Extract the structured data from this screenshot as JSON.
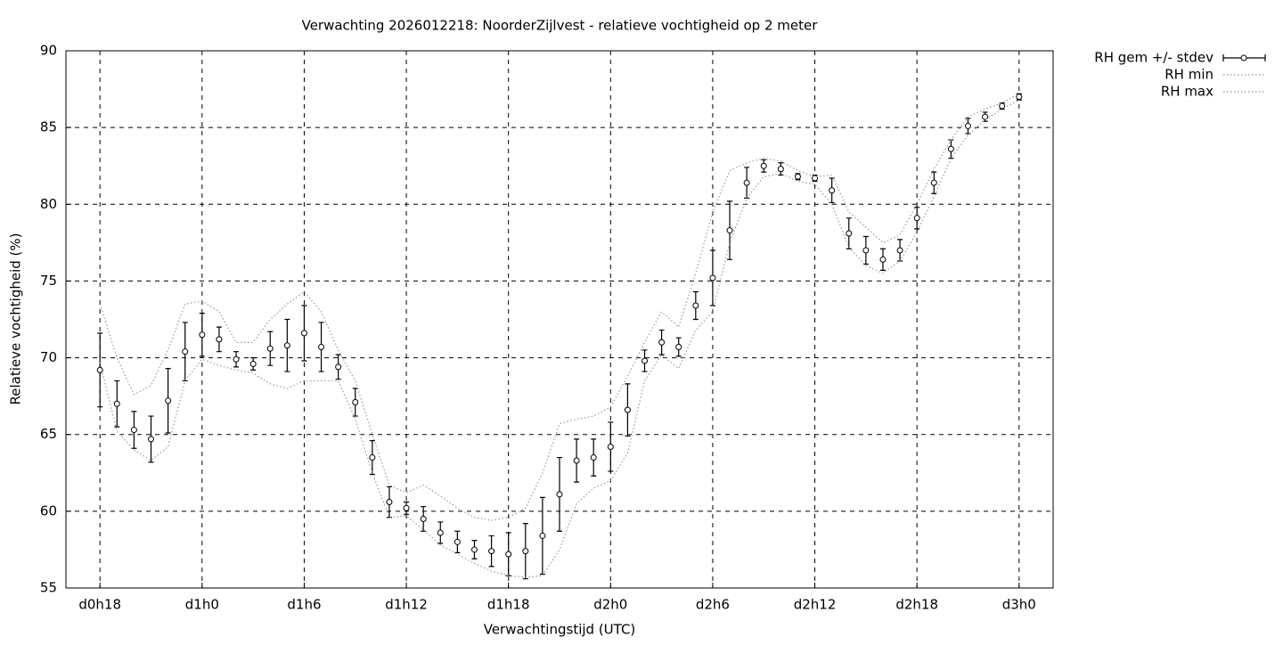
{
  "chart_data": {
    "type": "errorbar-line",
    "title": "Verwachting 2026012218: NoorderZijlvest - relatieve vochtigheid op 2 meter",
    "x_label": "Verwachtingstijd (UTC)",
    "y_label": "Relatieve vochtigheid (%)",
    "x": [
      18,
      19,
      20,
      21,
      22,
      23,
      24,
      25,
      26,
      27,
      28,
      29,
      30,
      31,
      32,
      33,
      34,
      35,
      36,
      37,
      38,
      39,
      40,
      41,
      42,
      43,
      44,
      45,
      46,
      47,
      48,
      49,
      50,
      51,
      52,
      53,
      54,
      55,
      56,
      57,
      58,
      59,
      60,
      61,
      62,
      63,
      64,
      65,
      66,
      67,
      68,
      69,
      70,
      71,
      72
    ],
    "xlim": [
      16,
      74
    ],
    "xticks": [
      {
        "value": 18,
        "label": "d0h18"
      },
      {
        "value": 24,
        "label": "d1h0"
      },
      {
        "value": 30,
        "label": "d1h6"
      },
      {
        "value": 36,
        "label": "d1h12"
      },
      {
        "value": 42,
        "label": "d1h18"
      },
      {
        "value": 48,
        "label": "d2h0"
      },
      {
        "value": 54,
        "label": "d2h6"
      },
      {
        "value": 60,
        "label": "d2h12"
      },
      {
        "value": 66,
        "label": "d2h18"
      },
      {
        "value": 72,
        "label": "d3h0"
      }
    ],
    "ylim": [
      55,
      90
    ],
    "yticks": [
      55,
      60,
      65,
      70,
      75,
      80,
      85,
      90
    ],
    "grid": true,
    "legend": "outside-top-right",
    "series": [
      {
        "name": "RH gem +/- stdev",
        "color": "#000000",
        "style": "errorbar",
        "values": [
          69.2,
          67.0,
          65.3,
          64.7,
          67.2,
          70.4,
          71.5,
          71.2,
          69.9,
          69.6,
          70.6,
          70.8,
          71.6,
          70.7,
          69.4,
          67.1,
          63.5,
          60.6,
          60.2,
          59.5,
          58.6,
          58.0,
          57.5,
          57.4,
          57.2,
          57.4,
          58.4,
          61.1,
          63.3,
          63.5,
          64.2,
          66.6,
          69.8,
          71.0,
          70.7,
          73.4,
          75.2,
          78.3,
          81.4,
          82.5,
          82.3,
          81.8,
          81.7,
          80.9,
          78.1,
          77.0,
          76.4,
          77.0,
          79.1,
          81.4,
          83.6,
          85.1,
          85.7,
          86.4,
          87.0
        ],
        "error": [
          2.4,
          1.5,
          1.2,
          1.5,
          2.1,
          1.9,
          1.4,
          0.8,
          0.5,
          0.4,
          1.1,
          1.7,
          1.8,
          1.6,
          0.8,
          0.9,
          1.1,
          1.0,
          0.4,
          0.8,
          0.7,
          0.7,
          0.6,
          1.0,
          1.4,
          1.8,
          2.5,
          2.4,
          1.4,
          1.2,
          1.6,
          1.7,
          0.7,
          0.8,
          0.6,
          0.9,
          1.8,
          1.9,
          1.0,
          0.4,
          0.4,
          0.2,
          0.2,
          0.8,
          1.0,
          0.9,
          0.7,
          0.7,
          0.7,
          0.7,
          0.6,
          0.5,
          0.3,
          0.2,
          0.2
        ]
      },
      {
        "name": "RH min",
        "color": "#999999",
        "style": "dotted",
        "values": [
          69.7,
          65.2,
          64.0,
          63.3,
          64.2,
          68.5,
          69.9,
          69.5,
          69.2,
          69.0,
          68.3,
          68.0,
          68.5,
          68.5,
          68.5,
          66.0,
          62.5,
          59.6,
          59.7,
          58.8,
          57.8,
          57.2,
          56.6,
          56.1,
          55.8,
          55.7,
          55.8,
          57.5,
          60.5,
          61.5,
          62.0,
          63.8,
          68.5,
          70.2,
          69.3,
          71.8,
          73.0,
          77.5,
          80.4,
          81.8,
          82.0,
          81.5,
          81.3,
          80.0,
          77.2,
          76.0,
          75.5,
          76.3,
          78.2,
          80.5,
          83.0,
          84.5,
          85.5,
          86.2,
          86.8
        ]
      },
      {
        "name": "RH max",
        "color": "#999999",
        "style": "dotted",
        "values": [
          73.5,
          70.0,
          67.6,
          68.2,
          70.5,
          73.5,
          73.7,
          73.0,
          71.0,
          71.0,
          72.5,
          73.5,
          74.3,
          73.0,
          70.5,
          68.5,
          65.0,
          61.7,
          61.2,
          61.7,
          61.0,
          60.2,
          59.6,
          59.4,
          59.6,
          60.2,
          62.5,
          65.7,
          66.0,
          66.2,
          66.8,
          68.8,
          71.0,
          73.0,
          72.0,
          75.5,
          79.5,
          82.2,
          82.7,
          83.0,
          82.8,
          82.2,
          81.8,
          81.9,
          79.5,
          78.5,
          77.5,
          78.0,
          80.0,
          82.3,
          84.2,
          85.7,
          86.2,
          86.6,
          87.2
        ]
      }
    ]
  }
}
